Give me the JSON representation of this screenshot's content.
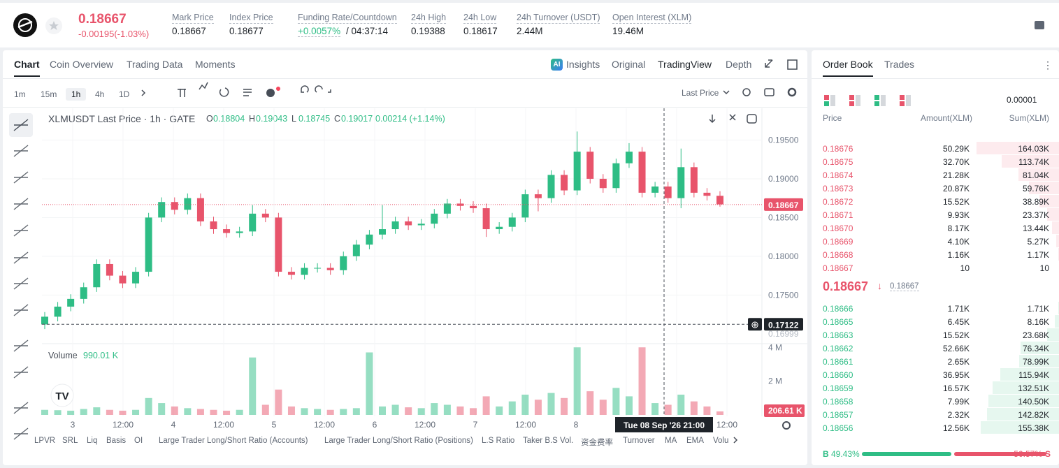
{
  "header": {
    "price": "0.18667",
    "change": "-0.00195(-1.03%)",
    "stats": [
      {
        "label": "Mark Price",
        "value": "0.18667"
      },
      {
        "label": "Index Price",
        "value": "0.18677"
      },
      {
        "label": "Funding Rate/Countdown",
        "value": "+0.0057%",
        "extra": "/ 04:37:14"
      },
      {
        "label": "24h High",
        "value": "0.19388"
      },
      {
        "label": "24h Low",
        "value": "0.18617"
      },
      {
        "label": "24h Turnover (USDT)",
        "value": "2.44M"
      },
      {
        "label": "Open Interest (XLM)",
        "value": "19.46M"
      }
    ]
  },
  "tabs": [
    "Chart",
    "Coin Overview",
    "Trading Data",
    "Moments"
  ],
  "view_tabs": [
    "Insights",
    "Original",
    "TradingView",
    "Depth"
  ],
  "ai_badge": "AI",
  "intervals": [
    "1m",
    "15m",
    "1h",
    "4h",
    "1D"
  ],
  "price_source": "Last Price",
  "chart_data": {
    "type": "candlestick",
    "title": "XLMUSDT Last Price · 1h · GATE",
    "legend": [
      {
        "k": "O",
        "v": "0.18804"
      },
      {
        "k": "H",
        "v": "0.19043"
      },
      {
        "k": "L",
        "v": "0.18745"
      },
      {
        "k": "C",
        "v": "0.19017"
      }
    ],
    "legend_change": "0.00214 (+1.14%)",
    "open": [
      0.1712,
      0.1722,
      0.1735,
      0.1745,
      0.176,
      0.179,
      0.1775,
      0.1765,
      0.178,
      0.185,
      0.187,
      0.186,
      0.1875,
      0.1845,
      0.1835,
      0.183,
      0.1832,
      0.1855,
      0.185,
      0.178,
      0.1776,
      0.1785,
      0.1785,
      0.1782,
      0.18,
      0.1815,
      0.1828,
      0.1835,
      0.1845,
      0.184,
      0.1842,
      0.1855,
      0.1868,
      0.1865,
      0.1862,
      0.1835,
      0.1838,
      0.185,
      0.188,
      0.1875,
      0.1905,
      0.1885,
      0.1935,
      0.19,
      0.1888,
      0.192,
      0.1935,
      0.1882,
      0.189,
      0.1875,
      0.1915,
      0.1882,
      0.1878
    ],
    "high": [
      0.1728,
      0.1741,
      0.1751,
      0.1766,
      0.1796,
      0.1796,
      0.1781,
      0.1786,
      0.1856,
      0.1876,
      0.1876,
      0.1881,
      0.1881,
      0.1851,
      0.1841,
      0.1838,
      0.1866,
      0.1861,
      0.1856,
      0.1786,
      0.1791,
      0.1791,
      0.1791,
      0.1806,
      0.1821,
      0.1834,
      0.1866,
      0.1851,
      0.1851,
      0.1848,
      0.1861,
      0.1874,
      0.1874,
      0.1871,
      0.1868,
      0.1844,
      0.1856,
      0.1886,
      0.1886,
      0.1911,
      0.1911,
      0.1961,
      0.1941,
      0.1906,
      0.1926,
      0.1946,
      0.1941,
      0.1896,
      0.1896,
      0.1939,
      0.1921,
      0.1888,
      0.1884
    ],
    "low": [
      0.1706,
      0.1716,
      0.1729,
      0.1739,
      0.1754,
      0.1769,
      0.1759,
      0.1759,
      0.1774,
      0.1844,
      0.1854,
      0.1854,
      0.1839,
      0.1829,
      0.1824,
      0.1824,
      0.1826,
      0.1844,
      0.1774,
      0.177,
      0.177,
      0.1779,
      0.1776,
      0.1776,
      0.1794,
      0.1809,
      0.1822,
      0.1829,
      0.1834,
      0.1834,
      0.1836,
      0.1849,
      0.1859,
      0.1856,
      0.1825,
      0.1829,
      0.1832,
      0.1844,
      0.1858,
      0.1869,
      0.1879,
      0.1879,
      0.1894,
      0.1882,
      0.1882,
      0.1914,
      0.1876,
      0.1876,
      0.1869,
      0.1862,
      0.1876,
      0.1872,
      0.1864
    ],
    "close": [
      0.1722,
      0.1735,
      0.1745,
      0.176,
      0.179,
      0.1775,
      0.1765,
      0.178,
      0.185,
      0.187,
      0.186,
      0.1875,
      0.1845,
      0.1835,
      0.183,
      0.1832,
      0.1855,
      0.185,
      0.178,
      0.1776,
      0.1785,
      0.1785,
      0.1782,
      0.18,
      0.1815,
      0.1828,
      0.1835,
      0.1845,
      0.184,
      0.1842,
      0.1855,
      0.1868,
      0.1865,
      0.1862,
      0.1835,
      0.1838,
      0.185,
      0.188,
      0.1875,
      0.1905,
      0.1885,
      0.1935,
      0.19,
      0.1888,
      0.192,
      0.1935,
      0.1882,
      0.189,
      0.1875,
      0.1915,
      0.1882,
      0.1878,
      0.1867
    ],
    "up_color": "#2ebd85",
    "down_color": "#e8546b",
    "ylim": [
      0.1689,
      0.1991
    ],
    "yticks": [
      {
        "value": 0.175,
        "label": "0.17500"
      },
      {
        "value": 0.18,
        "label": "0.18000"
      },
      {
        "value": 0.185,
        "label": "0.18500"
      },
      {
        "value": 0.19,
        "label": "0.19000"
      },
      {
        "value": 0.195,
        "label": "0.19500"
      }
    ],
    "last_price": 0.18667,
    "last_price_label": "0.18667",
    "crosshair_price": 0.17122,
    "crosshair_label": "0.17122",
    "crosshair_time": "Tue 08 Sep '26   21:00",
    "extra_axis_label": "0.16999",
    "x_labels": [
      "3",
      "12:00",
      "4",
      "12:00",
      "5",
      "12:00",
      "6",
      "12:00",
      "7",
      "12:00",
      "8",
      null,
      null,
      "12:00"
    ],
    "volume": {
      "title": "Volume",
      "current": "990.01 K",
      "last_label": "206.61 K",
      "ylim": [
        0,
        4300000
      ],
      "yticks": [
        {
          "value": 2000000,
          "label": "2 M"
        },
        {
          "value": 4000000,
          "label": "4 M"
        }
      ],
      "values": [
        300000,
        280000,
        250000,
        350000,
        450000,
        300000,
        250000,
        300000,
        1000000,
        700000,
        500000,
        400000,
        350000,
        300000,
        250000,
        300000,
        3400000,
        600000,
        1500000,
        500000,
        400000,
        350000,
        300000,
        350000,
        400000,
        3700000,
        500000,
        600000,
        450000,
        400000,
        700000,
        600000,
        500000,
        400000,
        1100000,
        500000,
        800000,
        1200000,
        900000,
        1300000,
        1000000,
        4000000,
        1400000,
        900000,
        1600000,
        1100000,
        4000000,
        700000,
        600000,
        1200000,
        800000,
        500000,
        206610
      ]
    }
  },
  "indicators": [
    "LPVR",
    "SRL",
    "Liq",
    "Basis",
    "OI",
    "Large Trader Long/Short Ratio (Accounts)",
    "Large Trader Long/Short Ratio (Positions)",
    "L.S Ratio",
    "Taker B.S Vol.",
    "资金费率",
    "Turnover",
    "MA",
    "EMA",
    "Volu"
  ],
  "order_book": {
    "tabs": [
      "Order Book",
      "Trades"
    ],
    "precision": "0.00001",
    "columns": [
      "Price",
      "Amount(XLM)",
      "Sum(XLM)"
    ],
    "asks": [
      {
        "price": "0.18676",
        "amount": "50.29K",
        "sum": "164.03K"
      },
      {
        "price": "0.18675",
        "amount": "32.70K",
        "sum": "113.74K"
      },
      {
        "price": "0.18674",
        "amount": "21.28K",
        "sum": "81.04K"
      },
      {
        "price": "0.18673",
        "amount": "20.87K",
        "sum": "59.76K"
      },
      {
        "price": "0.18672",
        "amount": "15.52K",
        "sum": "38.89K"
      },
      {
        "price": "0.18671",
        "amount": "9.93K",
        "sum": "23.37K"
      },
      {
        "price": "0.18670",
        "amount": "8.17K",
        "sum": "13.44K"
      },
      {
        "price": "0.18669",
        "amount": "4.10K",
        "sum": "5.27K"
      },
      {
        "price": "0.18668",
        "amount": "1.16K",
        "sum": "1.17K"
      },
      {
        "price": "0.18667",
        "amount": "10",
        "sum": "10"
      }
    ],
    "mid_price": "0.18667",
    "mid_mark": "0.18667",
    "bids": [
      {
        "price": "0.18666",
        "amount": "1.71K",
        "sum": "1.71K"
      },
      {
        "price": "0.18665",
        "amount": "6.45K",
        "sum": "8.16K"
      },
      {
        "price": "0.18663",
        "amount": "15.52K",
        "sum": "23.68K"
      },
      {
        "price": "0.18662",
        "amount": "52.66K",
        "sum": "76.34K"
      },
      {
        "price": "0.18661",
        "amount": "2.65K",
        "sum": "78.99K"
      },
      {
        "price": "0.18660",
        "amount": "36.95K",
        "sum": "115.94K"
      },
      {
        "price": "0.18659",
        "amount": "16.57K",
        "sum": "132.51K"
      },
      {
        "price": "0.18658",
        "amount": "7.99K",
        "sum": "140.50K"
      },
      {
        "price": "0.18657",
        "amount": "2.32K",
        "sum": "142.82K"
      },
      {
        "price": "0.18656",
        "amount": "12.56K",
        "sum": "155.38K"
      }
    ],
    "ratio": {
      "buy_letter": "B",
      "buy": 49.43,
      "buy_label": "49.43%",
      "sell": 50.57,
      "sell_label": "50.57%",
      "sell_letter": "S"
    }
  }
}
